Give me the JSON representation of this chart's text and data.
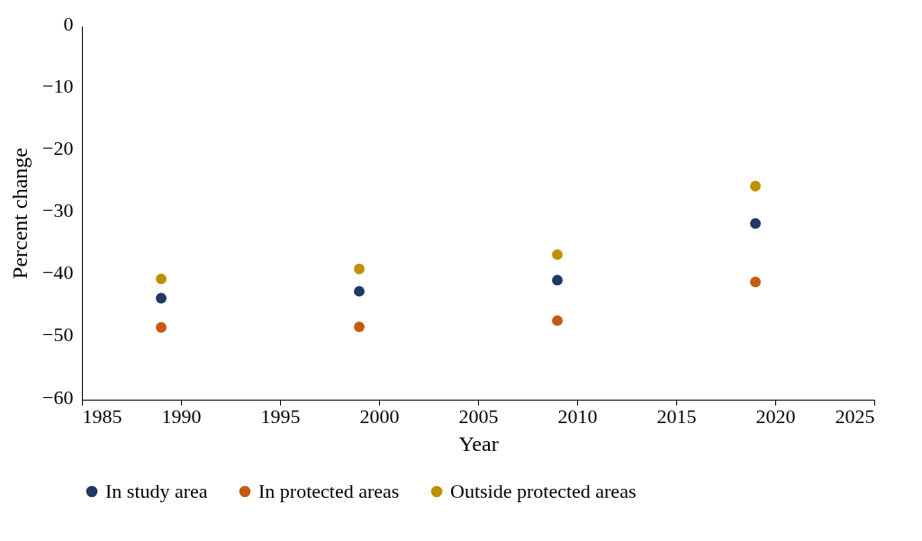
{
  "chart_data": {
    "type": "scatter",
    "xlabel": "Year",
    "ylabel": "Percent change",
    "x": [
      1989,
      1999,
      2009,
      2019
    ],
    "series": [
      {
        "name": "In study area",
        "color": "#203864",
        "values": [
          -43.7,
          -42.6,
          -40.8,
          -31.7
        ]
      },
      {
        "name": "In protected areas",
        "color": "#c55a11",
        "values": [
          -48.4,
          -48.3,
          -47.3,
          -41.1
        ]
      },
      {
        "name": "Outside protected areas",
        "color": "#bf9000",
        "values": [
          -40.6,
          -39.0,
          -36.7,
          -25.7
        ]
      }
    ],
    "xlim": [
      1985,
      2025
    ],
    "xticks": [
      1985,
      1990,
      1995,
      2000,
      2005,
      2010,
      2015,
      2020,
      2025
    ],
    "ylim": [
      -60,
      0
    ],
    "yticks": [
      0,
      -10,
      -20,
      -30,
      -40,
      -50,
      -60
    ],
    "grid": false,
    "legend": "bottom"
  }
}
